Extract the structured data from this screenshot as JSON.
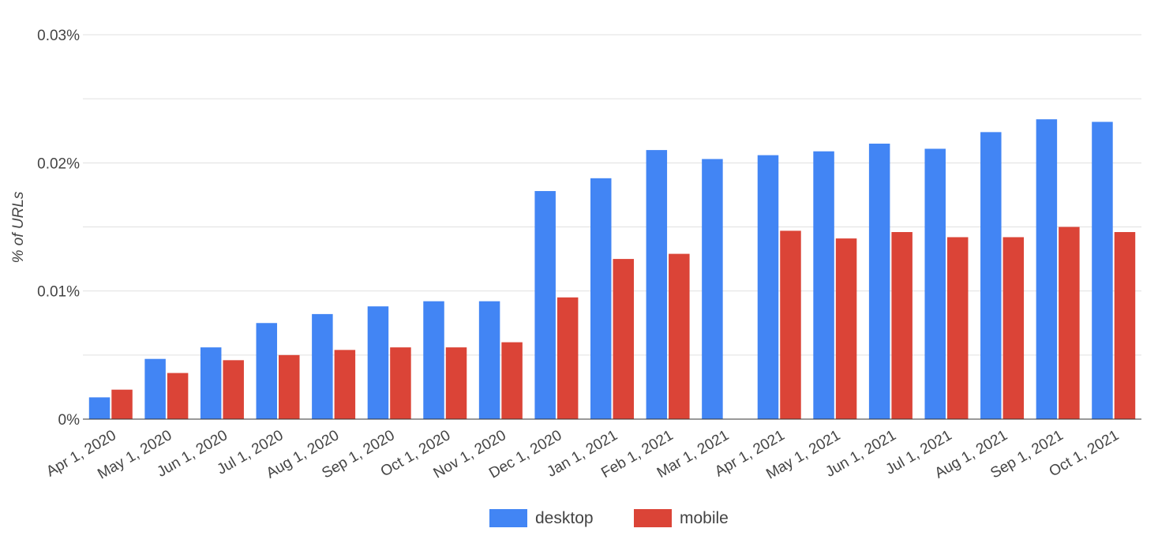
{
  "chart_data": {
    "type": "bar",
    "title": "",
    "xlabel": "",
    "ylabel": "% of URLs",
    "ylim": [
      0,
      0.03
    ],
    "yticks": [
      "0%",
      "0.01%",
      "0.02%",
      "0.03%"
    ],
    "grid": true,
    "legend_position": "bottom",
    "categories": [
      "Apr 1, 2020",
      "May 1, 2020",
      "Jun 1, 2020",
      "Jul 1, 2020",
      "Aug 1, 2020",
      "Sep 1, 2020",
      "Oct 1, 2020",
      "Nov 1, 2020",
      "Dec 1, 2020",
      "Jan 1, 2021",
      "Feb 1, 2021",
      "Mar 1, 2021",
      "Apr 1, 2021",
      "May 1, 2021",
      "Jun 1, 2021",
      "Jul 1, 2021",
      "Aug 1, 2021",
      "Sep 1, 2021",
      "Oct 1, 2021"
    ],
    "series": [
      {
        "name": "desktop",
        "color": "#4285f4",
        "values": [
          0.0017,
          0.0047,
          0.0056,
          0.0075,
          0.0082,
          0.0088,
          0.0092,
          0.0092,
          0.0178,
          0.0188,
          0.021,
          0.0203,
          0.0206,
          0.0209,
          0.0215,
          0.0211,
          0.0224,
          0.0234,
          0.0232
        ]
      },
      {
        "name": "mobile",
        "color": "#db4437",
        "values": [
          0.0023,
          0.0036,
          0.0046,
          0.005,
          0.0054,
          0.0056,
          0.0056,
          0.006,
          0.0095,
          0.0125,
          0.0129,
          null,
          0.0147,
          0.0141,
          0.0146,
          0.0142,
          0.0142,
          0.015,
          0.0146
        ]
      }
    ]
  }
}
